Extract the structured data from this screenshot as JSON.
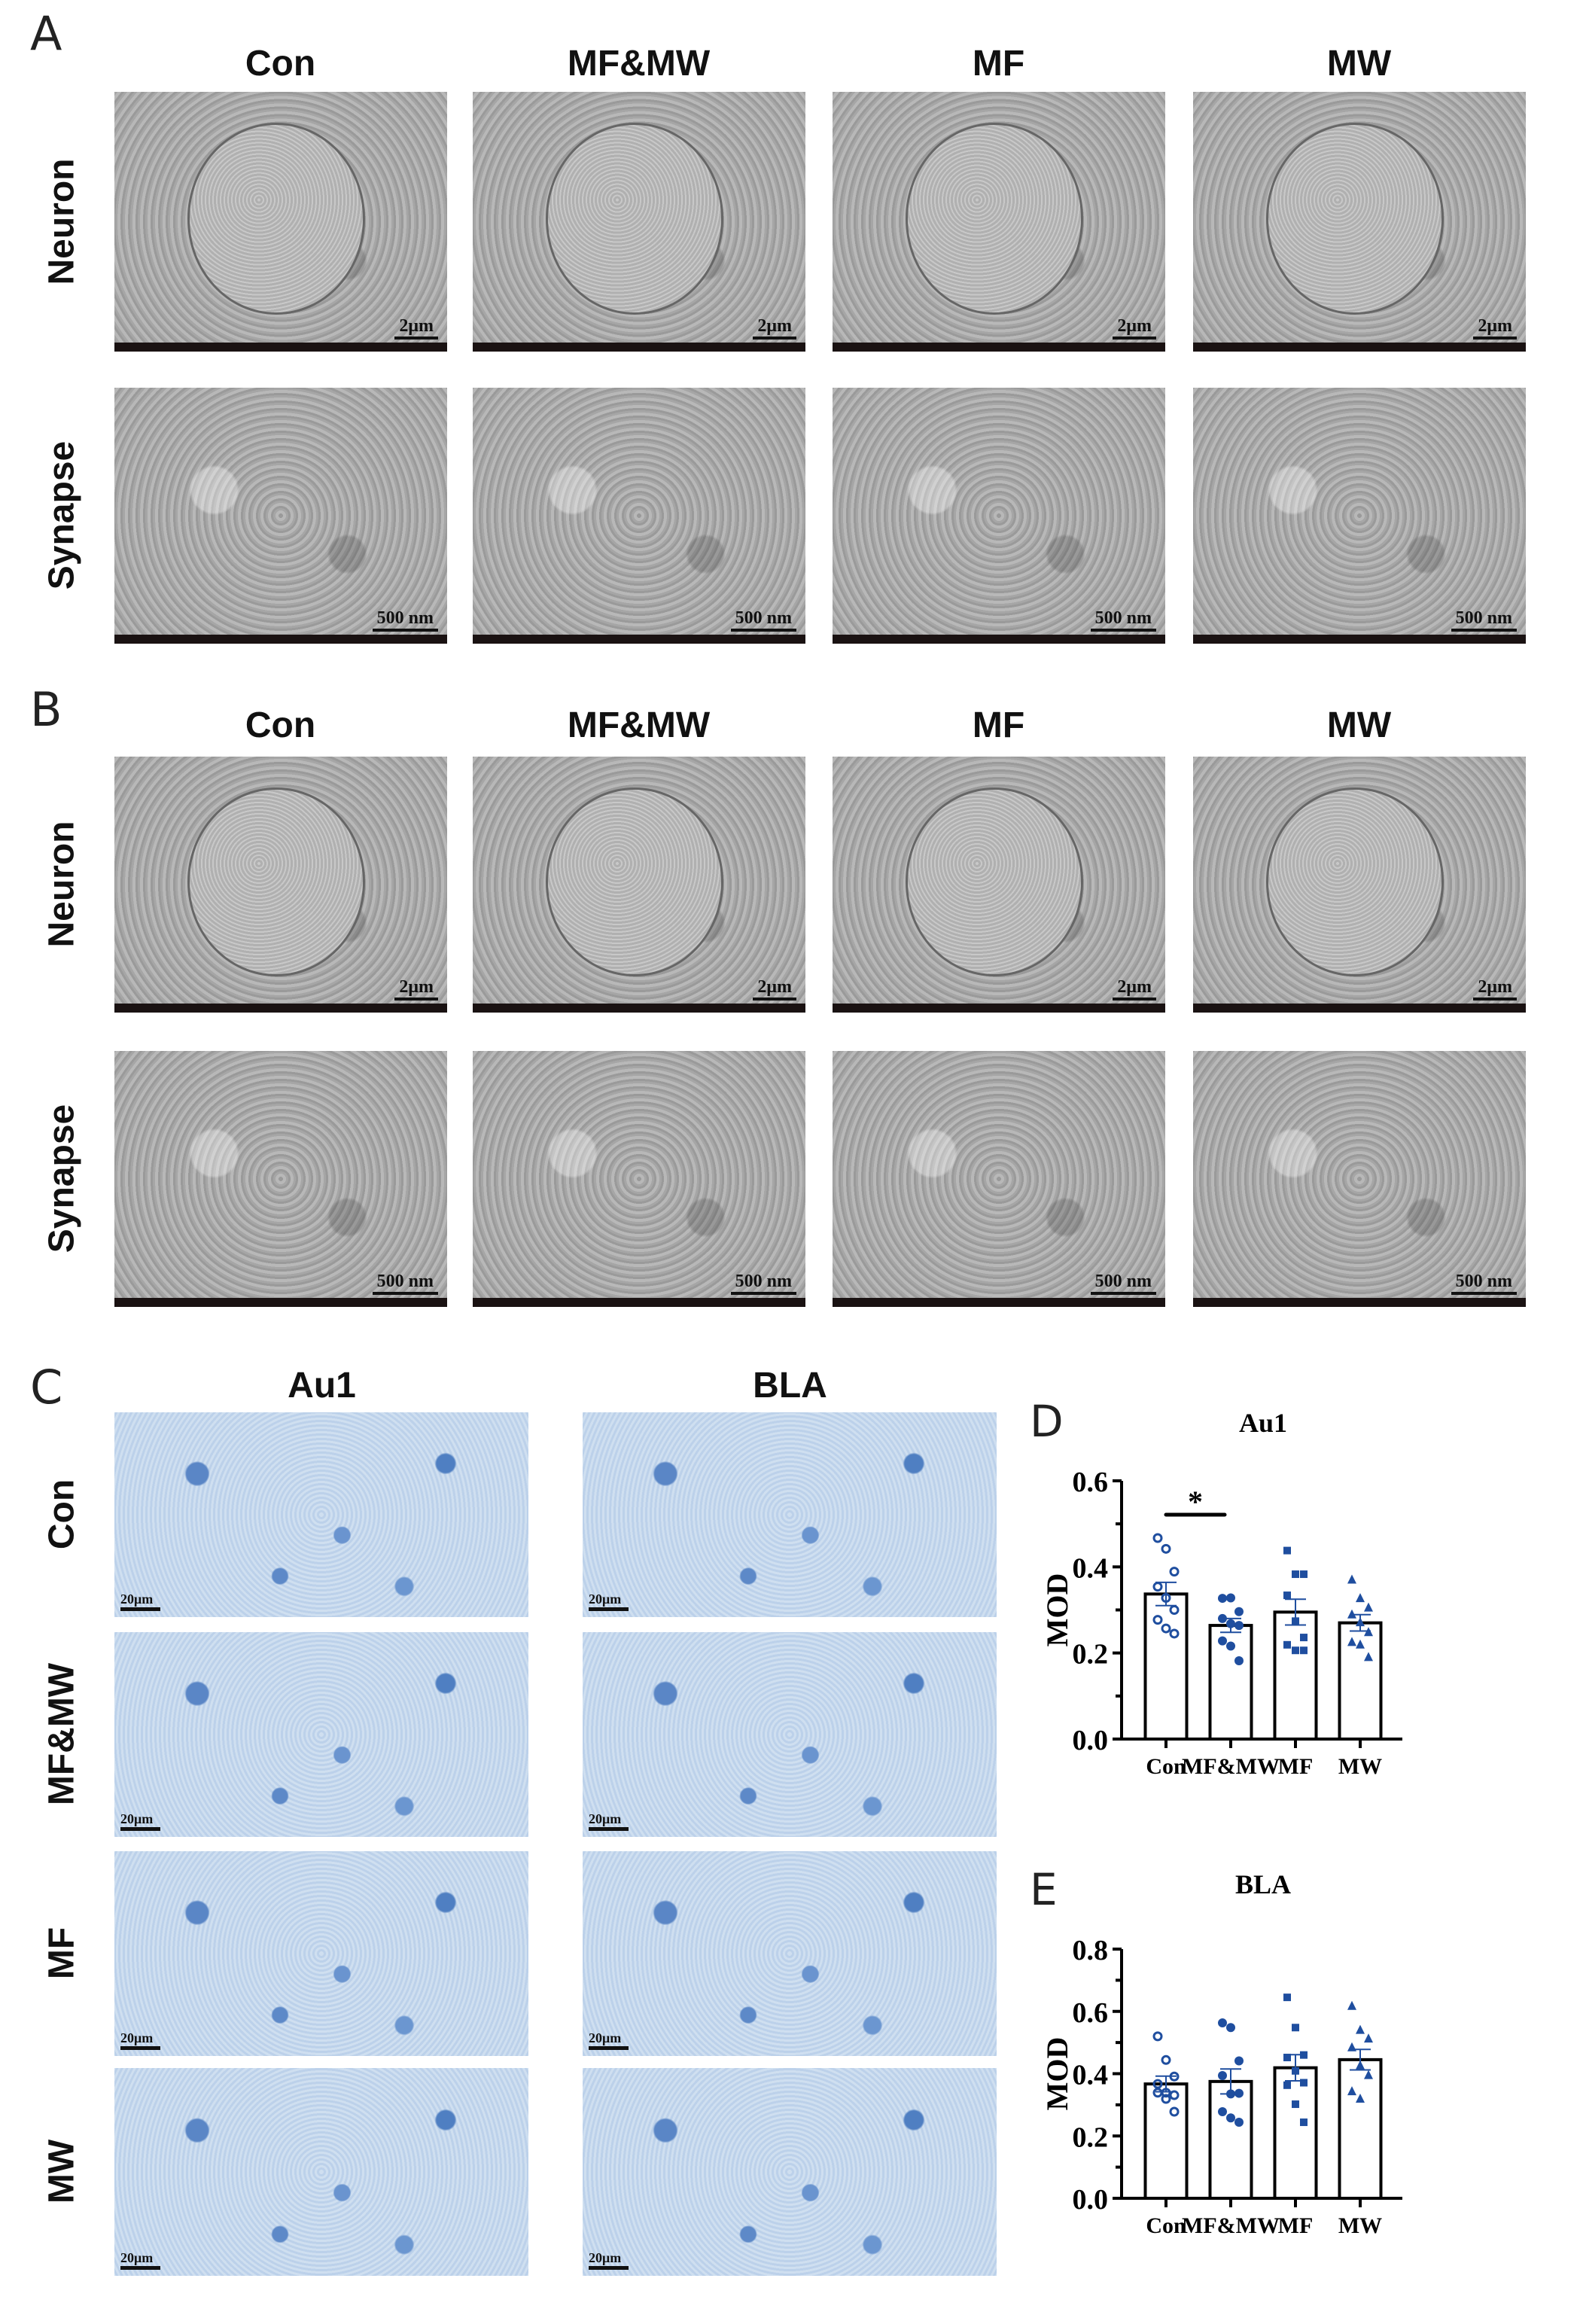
{
  "panels": {
    "A": {
      "label": "A",
      "columns": [
        "Con",
        "MF&MW",
        "MF",
        "MW"
      ],
      "rows": [
        "Neuron",
        "Synapse"
      ],
      "scale_bars": [
        "2μm",
        "500 nm"
      ]
    },
    "B": {
      "label": "B",
      "columns": [
        "Con",
        "MF&MW",
        "MF",
        "MW"
      ],
      "rows": [
        "Neuron",
        "Synapse"
      ],
      "scale_bars": [
        "2μm",
        "500 nm"
      ]
    },
    "C": {
      "label": "C",
      "columns": [
        "Au1",
        "BLA"
      ],
      "rows": [
        "Con",
        "MF&MW",
        "MF",
        "MW"
      ],
      "scale_bar": "20μm"
    },
    "D": {
      "label": "D"
    },
    "E": {
      "label": "E"
    }
  },
  "colors": {
    "marker": "#1f4e9f",
    "bar_edge": "#000000",
    "bar_fill": "#ffffff"
  },
  "chart_data": [
    {
      "type": "bar",
      "title": "Au1",
      "ylabel": "MOD",
      "xlabel": "",
      "categories": [
        "Con",
        "MF&MW",
        "MF",
        "MW"
      ],
      "ylim": [
        0,
        0.6
      ],
      "yticks": [
        "0.0",
        "0.2",
        "0.4",
        "0.6"
      ],
      "markers": [
        "open-circle",
        "circle",
        "square",
        "triangle"
      ],
      "means": [
        0.337,
        0.264,
        0.295,
        0.27
      ],
      "sem": [
        0.027,
        0.016,
        0.03,
        0.019
      ],
      "points": [
        [
          0.467,
          0.442,
          0.389,
          0.354,
          0.328,
          0.3,
          0.277,
          0.257,
          0.245
        ],
        [
          0.327,
          0.328,
          0.296,
          0.28,
          0.268,
          0.264,
          0.228,
          0.216,
          0.182
        ],
        [
          0.438,
          0.383,
          0.383,
          0.334,
          0.274,
          0.236,
          0.219,
          0.206,
          0.206
        ],
        [
          0.37,
          0.327,
          0.305,
          0.289,
          0.271,
          0.248,
          0.225,
          0.219,
          0.19
        ]
      ],
      "significance": [
        {
          "from": "Con",
          "to": "MF&MW",
          "label": "*"
        }
      ],
      "grid": false
    },
    {
      "type": "bar",
      "title": "BLA",
      "ylabel": "MOD",
      "xlabel": "",
      "categories": [
        "Con",
        "MF&MW",
        "MF",
        "MW"
      ],
      "ylim": [
        0,
        0.8
      ],
      "yticks": [
        "0.0",
        "0.2",
        "0.4",
        "0.6",
        "0.8"
      ],
      "markers": [
        "open-circle",
        "circle",
        "square",
        "triangle"
      ],
      "means": [
        0.367,
        0.375,
        0.419,
        0.445
      ],
      "sem": [
        0.025,
        0.04,
        0.042,
        0.033
      ],
      "points": [
        [
          0.52,
          0.444,
          0.391,
          0.367,
          0.339,
          0.331,
          0.339,
          0.319,
          0.278
        ],
        [
          0.563,
          0.548,
          0.441,
          0.394,
          0.335,
          0.337,
          0.278,
          0.258,
          0.244
        ],
        [
          0.645,
          0.548,
          0.46,
          0.452,
          0.409,
          0.371,
          0.363,
          0.302,
          0.244
        ],
        [
          0.617,
          0.54,
          0.512,
          0.484,
          0.426,
          0.395,
          0.343,
          0.319
        ]
      ],
      "significance": [],
      "grid": false
    }
  ]
}
